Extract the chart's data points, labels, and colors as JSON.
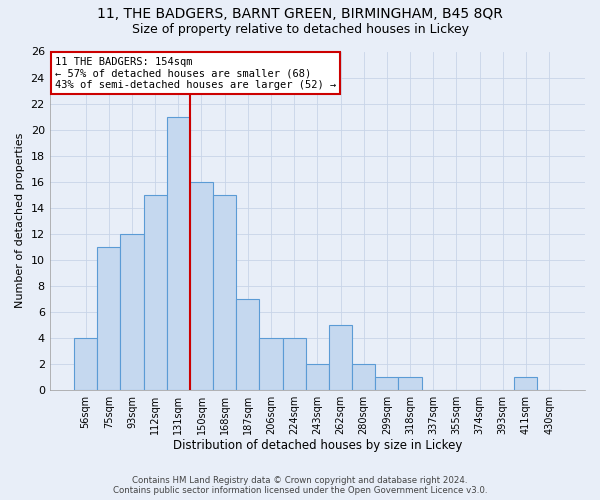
{
  "title1": "11, THE BADGERS, BARNT GREEN, BIRMINGHAM, B45 8QR",
  "title2": "Size of property relative to detached houses in Lickey",
  "xlabel": "Distribution of detached houses by size in Lickey",
  "ylabel": "Number of detached properties",
  "bar_labels": [
    "56sqm",
    "75sqm",
    "93sqm",
    "112sqm",
    "131sqm",
    "150sqm",
    "168sqm",
    "187sqm",
    "206sqm",
    "224sqm",
    "243sqm",
    "262sqm",
    "280sqm",
    "299sqm",
    "318sqm",
    "337sqm",
    "355sqm",
    "374sqm",
    "393sqm",
    "411sqm",
    "430sqm"
  ],
  "bar_heights": [
    4,
    11,
    12,
    15,
    21,
    16,
    15,
    7,
    4,
    4,
    2,
    5,
    2,
    1,
    1,
    0,
    0,
    0,
    0,
    1,
    0
  ],
  "bar_color": "#c5d8ef",
  "bar_edge_color": "#5b9bd5",
  "vline_x": 4.5,
  "vline_color": "#cc0000",
  "annotation_text": "11 THE BADGERS: 154sqm\n← 57% of detached houses are smaller (68)\n43% of semi-detached houses are larger (52) →",
  "annotation_box_color": "#ffffff",
  "annotation_box_edge_color": "#cc0000",
  "ylim": [
    0,
    26
  ],
  "yticks": [
    0,
    2,
    4,
    6,
    8,
    10,
    12,
    14,
    16,
    18,
    20,
    22,
    24,
    26
  ],
  "footer": "Contains HM Land Registry data © Crown copyright and database right 2024.\nContains public sector information licensed under the Open Government Licence v3.0.",
  "grid_color": "#c8d4e8",
  "background_color": "#e8eef8"
}
